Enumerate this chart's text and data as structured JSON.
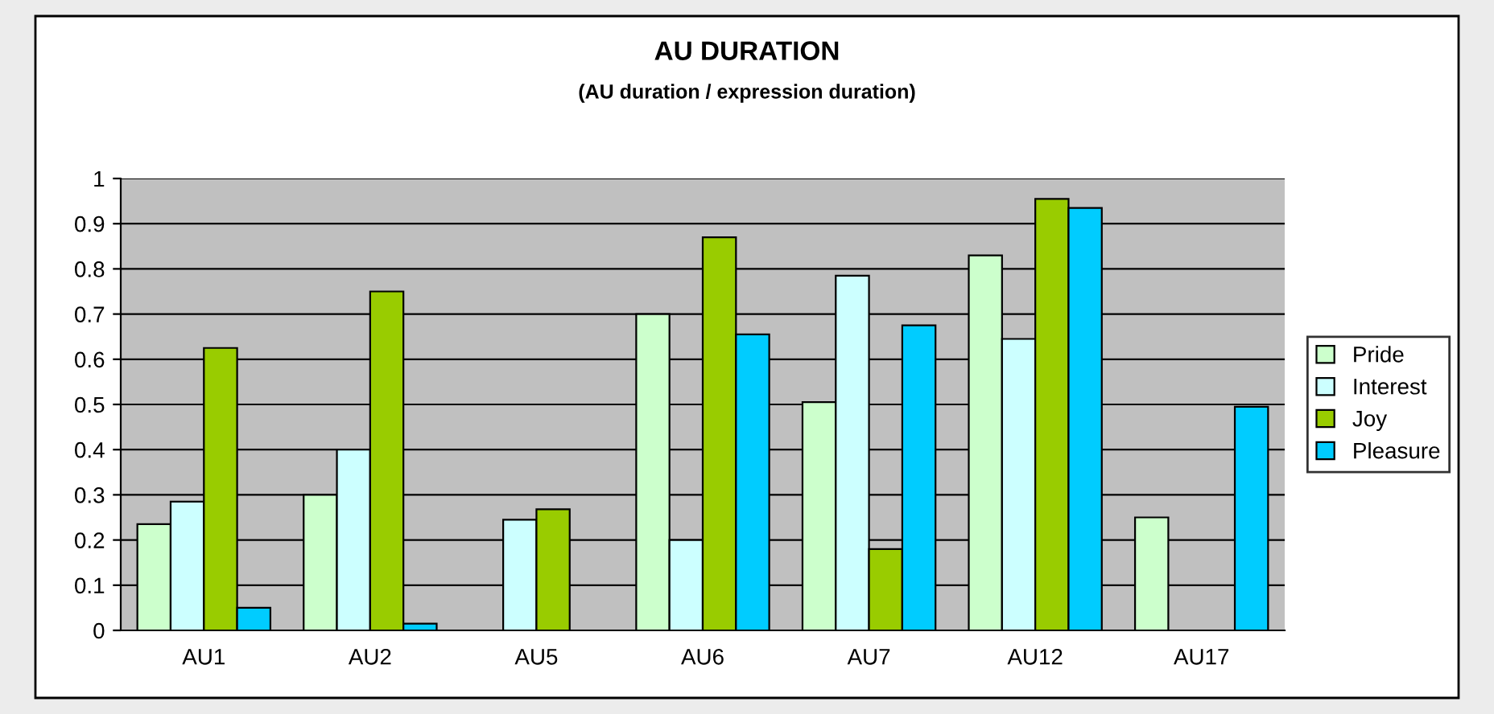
{
  "chart_data": {
    "type": "bar",
    "title": "AU DURATION",
    "subtitle": "(AU duration / expression duration)",
    "categories": [
      "AU1",
      "AU2",
      "AU5",
      "AU6",
      "AU7",
      "AU12",
      "AU17"
    ],
    "series": [
      {
        "name": "Pride",
        "color": "#ccffcc",
        "values": [
          0.235,
          0.3,
          null,
          0.7,
          0.505,
          0.83,
          0.25
        ]
      },
      {
        "name": "Interest",
        "color": "#ccffff",
        "values": [
          0.285,
          0.4,
          0.245,
          0.2,
          0.785,
          0.645,
          null
        ]
      },
      {
        "name": "Joy",
        "color": "#99cc00",
        "values": [
          0.625,
          0.75,
          0.268,
          0.87,
          0.18,
          0.955,
          null
        ]
      },
      {
        "name": "Pleasure",
        "color": "#00ccff",
        "values": [
          0.05,
          0.015,
          null,
          0.655,
          0.675,
          0.935,
          0.495
        ]
      }
    ],
    "ylim": [
      0,
      1
    ],
    "yticks": [
      0,
      0.1,
      0.2,
      0.3,
      0.4,
      0.5,
      0.6,
      0.7,
      0.8,
      0.9,
      1
    ],
    "grid": "y",
    "legend": "right"
  }
}
